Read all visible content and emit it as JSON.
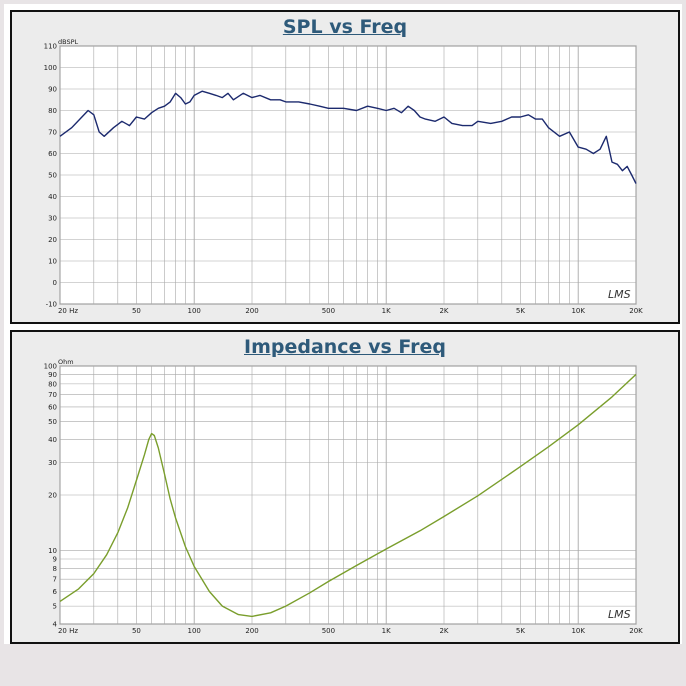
{
  "chart_data": [
    {
      "type": "line",
      "title": "SPL vs Freq",
      "ylabel": "dBSPL",
      "xscale": "log",
      "xlim": [
        20,
        20000
      ],
      "ylim": [
        -10,
        110
      ],
      "grid": true,
      "x_ticks": [
        20,
        50,
        100,
        200,
        500,
        1000,
        2000,
        5000,
        10000,
        20000
      ],
      "x_tick_labels": [
        "20 Hz",
        "50",
        "100",
        "200",
        "500",
        "1K",
        "2K",
        "5K",
        "10K",
        "20K"
      ],
      "y_ticks": [
        -10,
        0,
        10,
        20,
        30,
        40,
        50,
        60,
        70,
        80,
        90,
        100,
        110
      ],
      "y_tick_labels": [
        "-10",
        "0",
        "10",
        "20",
        "30",
        "40",
        "50",
        "60",
        "70",
        "80",
        "90",
        "100",
        "110"
      ],
      "watermark": "LMS",
      "line_color": "#1c2a6e",
      "series": [
        {
          "x": [
            20,
            23,
            26,
            28,
            30,
            32,
            34,
            38,
            42,
            46,
            50,
            55,
            60,
            65,
            70,
            75,
            80,
            85,
            90,
            95,
            100,
            110,
            120,
            130,
            140,
            150,
            160,
            180,
            200,
            220,
            250,
            280,
            300,
            350,
            400,
            450,
            500,
            600,
            700,
            800,
            900,
            1000,
            1100,
            1200,
            1300,
            1400,
            1500,
            1600,
            1800,
            2000,
            2200,
            2500,
            2800,
            3000,
            3500,
            4000,
            4500,
            5000,
            5500,
            6000,
            6500,
            7000,
            8000,
            9000,
            10000,
            11000,
            12000,
            13000,
            14000,
            15000,
            16000,
            17000,
            18000,
            19000,
            20000
          ],
          "y": [
            68,
            72,
            77,
            80,
            78,
            70,
            68,
            72,
            75,
            73,
            77,
            76,
            79,
            81,
            82,
            84,
            88,
            86,
            83,
            84,
            87,
            89,
            88,
            87,
            86,
            88,
            85,
            88,
            86,
            87,
            85,
            85,
            84,
            84,
            83,
            82,
            81,
            81,
            80,
            82,
            81,
            80,
            81,
            79,
            82,
            80,
            77,
            76,
            75,
            77,
            74,
            73,
            73,
            75,
            74,
            75,
            77,
            77,
            78,
            76,
            76,
            72,
            68,
            70,
            63,
            62,
            60,
            62,
            68,
            56,
            55,
            52,
            54,
            50,
            46
          ]
        }
      ]
    },
    {
      "type": "line",
      "title": "Impedance vs Freq",
      "ylabel": "Ohm",
      "xscale": "log",
      "yscale": "log",
      "xlim": [
        20,
        20000
      ],
      "ylim": [
        4,
        100
      ],
      "grid": true,
      "x_ticks": [
        20,
        50,
        100,
        200,
        500,
        1000,
        2000,
        5000,
        10000,
        20000
      ],
      "x_tick_labels": [
        "20 Hz",
        "50",
        "100",
        "200",
        "500",
        "1K",
        "2K",
        "5K",
        "10K",
        "20K"
      ],
      "y_ticks": [
        4,
        5,
        6,
        7,
        8,
        9,
        10,
        20,
        30,
        40,
        50,
        60,
        70,
        80,
        90,
        100
      ],
      "y_tick_labels": [
        "4",
        "5",
        "6",
        "7",
        "8",
        "9",
        "10",
        "20",
        "30",
        "40",
        "50",
        "60",
        "70",
        "80",
        "90",
        "100"
      ],
      "watermark": "LMS",
      "line_color": "#7a9e2c",
      "series": [
        {
          "x": [
            20,
            25,
            30,
            35,
            40,
            45,
            50,
            55,
            58,
            60,
            62,
            65,
            70,
            75,
            80,
            90,
            100,
            120,
            140,
            170,
            200,
            250,
            300,
            400,
            500,
            700,
            1000,
            1500,
            2000,
            3000,
            5000,
            7000,
            10000,
            15000,
            20000
          ],
          "y": [
            5.3,
            6.2,
            7.5,
            9.5,
            12.5,
            17,
            24,
            33,
            40,
            43,
            42,
            36,
            26,
            19,
            15,
            10.5,
            8.2,
            6.0,
            5.0,
            4.5,
            4.4,
            4.6,
            5.0,
            5.9,
            6.8,
            8.3,
            10.2,
            12.8,
            15.3,
            19.8,
            28.5,
            36.5,
            48,
            68,
            90
          ]
        }
      ]
    }
  ]
}
